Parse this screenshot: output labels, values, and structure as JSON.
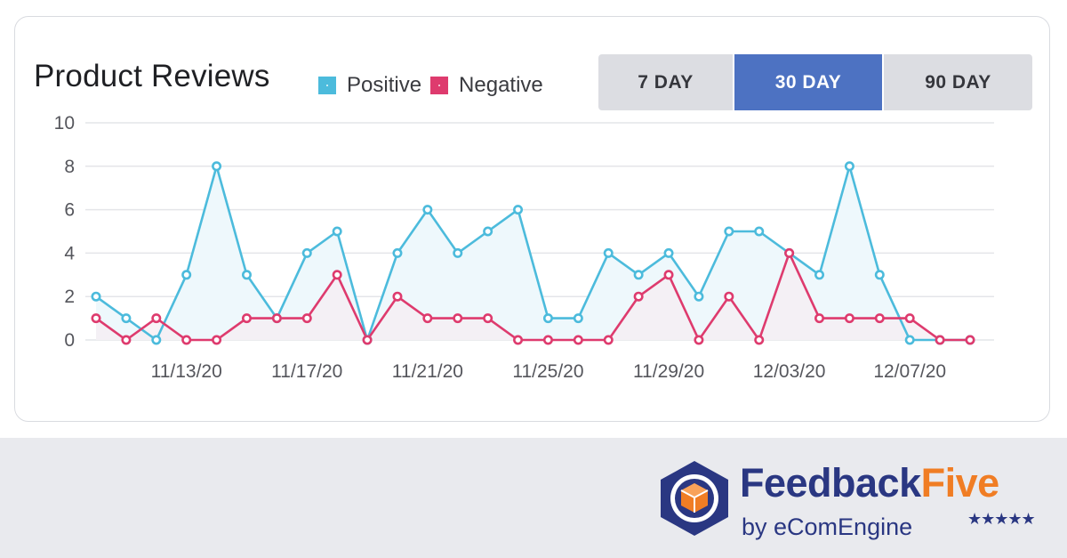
{
  "card": {
    "title": "Product Reviews",
    "legend": [
      {
        "label": "Positive",
        "color": "#4cbbdc"
      },
      {
        "label": "Negative",
        "color": "#de3b6e"
      }
    ],
    "ranges": [
      {
        "label": "7 DAY",
        "active": false
      },
      {
        "label": "30 DAY",
        "active": true
      },
      {
        "label": "90 DAY",
        "active": false
      }
    ]
  },
  "chart_data": {
    "type": "line",
    "ylim": [
      0,
      10
    ],
    "yticks": [
      0,
      2,
      4,
      6,
      8,
      10
    ],
    "grid": true,
    "x": [
      "11/10/20",
      "11/11/20",
      "11/12/20",
      "11/13/20",
      "11/14/20",
      "11/15/20",
      "11/16/20",
      "11/17/20",
      "11/18/20",
      "11/19/20",
      "11/20/20",
      "11/21/20",
      "11/22/20",
      "11/23/20",
      "11/24/20",
      "11/25/20",
      "11/26/20",
      "11/27/20",
      "11/28/20",
      "11/29/20",
      "11/30/20",
      "12/01/20",
      "12/02/20",
      "12/03/20",
      "12/04/20",
      "12/05/20",
      "12/06/20",
      "12/07/20",
      "12/08/20",
      "12/09/20"
    ],
    "xtick_labels": [
      "11/13/20",
      "11/17/20",
      "11/21/20",
      "11/25/20",
      "11/29/20",
      "12/03/20",
      "12/07/20"
    ],
    "series": [
      {
        "name": "Positive",
        "color": "#4cbbdc",
        "fill": "#eef8fc",
        "values": [
          2,
          1,
          0,
          3,
          8,
          3,
          1,
          4,
          5,
          0,
          4,
          6,
          4,
          5,
          6,
          1,
          1,
          4,
          3,
          4,
          2,
          5,
          5,
          4,
          3,
          8,
          3,
          0,
          0,
          0
        ]
      },
      {
        "name": "Negative",
        "color": "#de3b6e",
        "fill": "#f6eef3",
        "values": [
          1,
          0,
          1,
          0,
          0,
          1,
          1,
          1,
          3,
          0,
          2,
          1,
          1,
          1,
          0,
          0,
          0,
          0,
          2,
          3,
          0,
          2,
          0,
          4,
          1,
          1,
          1,
          1,
          0,
          0
        ]
      }
    ]
  },
  "brand": {
    "name_primary": "Feedback",
    "name_accent": "Five",
    "byline": "by eComEngine",
    "stars": "★★★★★",
    "logo_icon": "gear-box-icon"
  }
}
